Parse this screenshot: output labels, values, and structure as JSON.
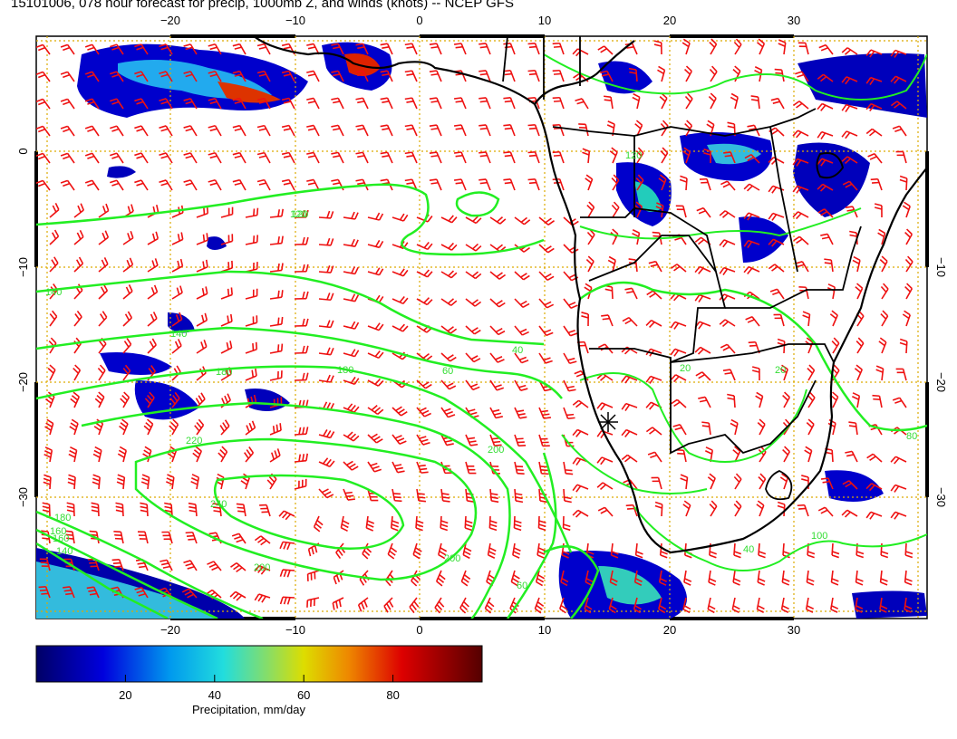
{
  "title": "15101006, 078 hour forecast for precip, 1000mb Z, and winds (knots) -- NCEP GFS",
  "lon_ticks_bottom": [
    "−20",
    "−10",
    "0",
    "10",
    "20",
    "30"
  ],
  "lon_ticks_top": [
    "−20",
    "−10",
    "0",
    "10",
    "20",
    "30"
  ],
  "lat_ticks_left": [
    "0",
    "−10",
    "−20",
    "−30"
  ],
  "lat_ticks_right": [
    "−10",
    "−20",
    "−30"
  ],
  "contour_labels": [
    "120",
    "140",
    "140",
    "160",
    "180",
    "180",
    "200",
    "220",
    "240",
    "200",
    "200",
    "180",
    "160",
    "140",
    "120",
    "60",
    "40",
    "20",
    "20",
    "40",
    "60",
    "80",
    "100",
    "120"
  ],
  "colorbar": {
    "label": "Precipitation, mm/day",
    "ticks": [
      "20",
      "40",
      "60",
      "80"
    ],
    "min": 0,
    "max": 100
  },
  "colors": {
    "wind_barb": "#ee1111",
    "contour": "#22ee22",
    "coast": "#000000",
    "grid": "#ddaa00"
  },
  "icons": {
    "marker": "asterisk-marker-icon"
  }
}
